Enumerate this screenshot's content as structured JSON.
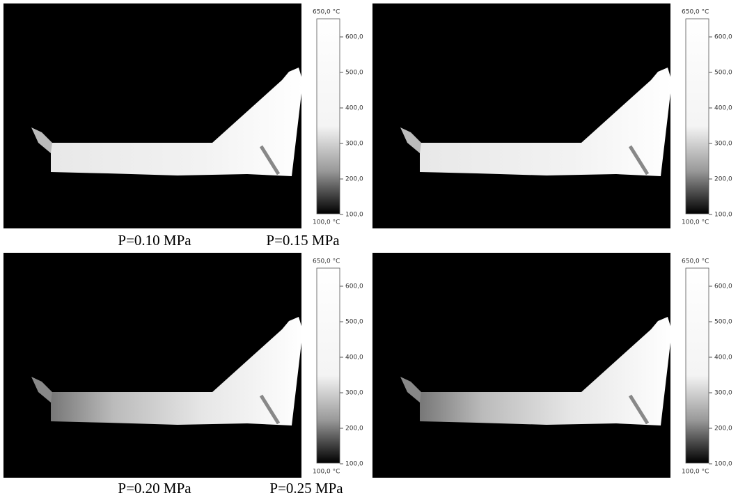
{
  "panels": [
    {
      "colorbar": {
        "max_label": "650,0 °C",
        "min_label": "100,0 °C",
        "ticks": [
          "600,0",
          "500,0",
          "400,0",
          "300,0",
          "200,0",
          "100,0"
        ]
      }
    },
    {
      "colorbar": {
        "max_label": "650,0 °C",
        "min_label": "100,0 °C",
        "ticks": [
          "600,0",
          "500,0",
          "400,0",
          "300,0",
          "200,0",
          "100,0"
        ]
      }
    },
    {
      "colorbar": {
        "max_label": "650,0 °C",
        "min_label": "100,0 °C",
        "ticks": [
          "600,0",
          "500,0",
          "400,0",
          "300,0",
          "200,0",
          "100,0"
        ]
      }
    },
    {
      "colorbar": {
        "max_label": "650,0 °C",
        "min_label": "100,0 °C",
        "ticks": [
          "600,0",
          "500,0",
          "400,0",
          "300,0",
          "200,0",
          "100,0"
        ]
      }
    }
  ],
  "captions": [
    "P=0.10 MPa",
    "P=0.15 MPa",
    "P=0.20 MPa",
    "P=0.25 MPa"
  ]
}
